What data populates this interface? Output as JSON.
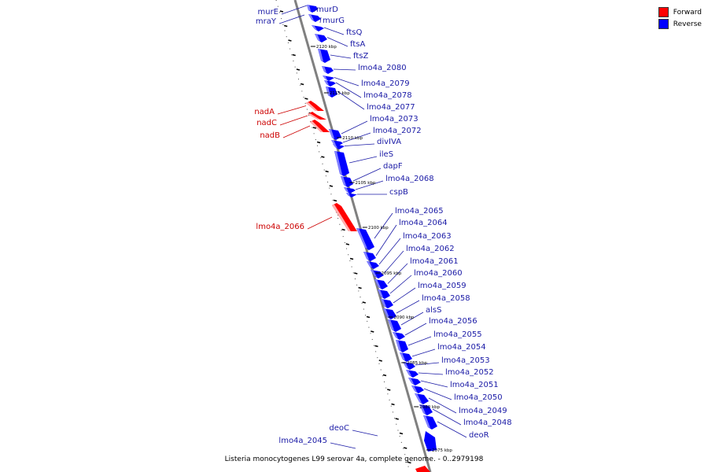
{
  "caption": "Listeria monocytogenes L99 serovar 4a, complete genome. - 0..2979198",
  "legend": [
    {
      "label": "Forward",
      "color": "#ff0000"
    },
    {
      "label": "Reverse",
      "color": "#0000ff"
    }
  ],
  "colors": {
    "forward": "#ff0000",
    "reverse": "#0000ff",
    "backbone": "#808080",
    "label_forward": "#cc0000",
    "label_reverse": "#1a1aa6"
  },
  "ticks": [
    "2120 kbp",
    "2115 kbp",
    "2110 kbp",
    "2105 kbp",
    "2100 kbp",
    "2095 kbp",
    "2090 kbp",
    "2085 kbp",
    "2080 kbp",
    "2075 kbp"
  ],
  "genes": [
    {
      "name": "murE",
      "strand": "reverse",
      "side": "left"
    },
    {
      "name": "mraY",
      "strand": "reverse",
      "side": "left"
    },
    {
      "name": "murD",
      "strand": "reverse",
      "side": "right"
    },
    {
      "name": "murG",
      "strand": "reverse",
      "side": "right"
    },
    {
      "name": "ftsQ",
      "strand": "reverse",
      "side": "right"
    },
    {
      "name": "ftsA",
      "strand": "reverse",
      "side": "right"
    },
    {
      "name": "ftsZ",
      "strand": "reverse",
      "side": "right"
    },
    {
      "name": "lmo4a_2080",
      "strand": "reverse",
      "side": "right"
    },
    {
      "name": "lmo4a_2079",
      "strand": "reverse",
      "side": "right"
    },
    {
      "name": "lmo4a_2078",
      "strand": "reverse",
      "side": "right"
    },
    {
      "name": "lmo4a_2077",
      "strand": "reverse",
      "side": "right"
    },
    {
      "name": "nadA",
      "strand": "forward",
      "side": "left"
    },
    {
      "name": "nadC",
      "strand": "forward",
      "side": "left"
    },
    {
      "name": "nadB",
      "strand": "forward",
      "side": "left"
    },
    {
      "name": "lmo4a_2073",
      "strand": "reverse",
      "side": "right"
    },
    {
      "name": "lmo4a_2072",
      "strand": "reverse",
      "side": "right"
    },
    {
      "name": "divIVA",
      "strand": "reverse",
      "side": "right"
    },
    {
      "name": "ileS",
      "strand": "reverse",
      "side": "right"
    },
    {
      "name": "dapF",
      "strand": "reverse",
      "side": "right"
    },
    {
      "name": "lmo4a_2068",
      "strand": "reverse",
      "side": "right"
    },
    {
      "name": "cspB",
      "strand": "reverse",
      "side": "right"
    },
    {
      "name": "lmo4a_2066",
      "strand": "forward",
      "side": "left"
    },
    {
      "name": "lmo4a_2065",
      "strand": "reverse",
      "side": "right"
    },
    {
      "name": "lmo4a_2064",
      "strand": "reverse",
      "side": "right"
    },
    {
      "name": "lmo4a_2063",
      "strand": "reverse",
      "side": "right"
    },
    {
      "name": "lmo4a_2062",
      "strand": "reverse",
      "side": "right"
    },
    {
      "name": "lmo4a_2061",
      "strand": "reverse",
      "side": "right"
    },
    {
      "name": "lmo4a_2060",
      "strand": "reverse",
      "side": "right"
    },
    {
      "name": "lmo4a_2059",
      "strand": "reverse",
      "side": "right"
    },
    {
      "name": "lmo4a_2058",
      "strand": "reverse",
      "side": "right"
    },
    {
      "name": "alsS",
      "strand": "reverse",
      "side": "right"
    },
    {
      "name": "lmo4a_2056",
      "strand": "reverse",
      "side": "right"
    },
    {
      "name": "lmo4a_2055",
      "strand": "reverse",
      "side": "right"
    },
    {
      "name": "lmo4a_2054",
      "strand": "reverse",
      "side": "right"
    },
    {
      "name": "lmo4a_2053",
      "strand": "reverse",
      "side": "right"
    },
    {
      "name": "lmo4a_2052",
      "strand": "reverse",
      "side": "right"
    },
    {
      "name": "lmo4a_2051",
      "strand": "reverse",
      "side": "right"
    },
    {
      "name": "lmo4a_2050",
      "strand": "reverse",
      "side": "right"
    },
    {
      "name": "lmo4a_2049",
      "strand": "reverse",
      "side": "right"
    },
    {
      "name": "lmo4a_2048",
      "strand": "reverse",
      "side": "right"
    },
    {
      "name": "deoR",
      "strand": "reverse",
      "side": "right"
    },
    {
      "name": "deoC",
      "strand": "reverse",
      "side": "left"
    },
    {
      "name": "lmo4a_2045",
      "strand": "reverse",
      "side": "left"
    }
  ]
}
